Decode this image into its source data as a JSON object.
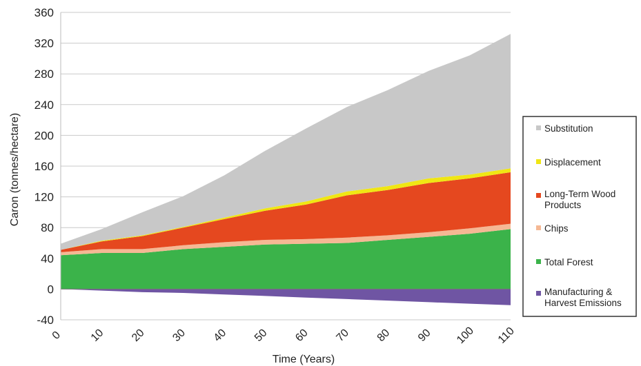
{
  "chart_data": {
    "type": "area",
    "stacked": true,
    "xlabel": "Time (Years)",
    "ylabel": "Caron (tonnes/hectare)",
    "ylim": [
      -40,
      360
    ],
    "xlim": [
      0,
      110
    ],
    "yticks": [
      "360",
      "320",
      "280",
      "240",
      "200",
      "160",
      "120",
      "80",
      "40",
      "0",
      "-40"
    ],
    "xticks": [
      "0",
      "10",
      "20",
      "30",
      "40",
      "50",
      "60",
      "70",
      "80",
      "90",
      "100",
      "110"
    ],
    "grid": "horizontal",
    "legend_position": "right",
    "x": [
      0,
      10,
      20,
      30,
      40,
      50,
      60,
      70,
      80,
      90,
      100,
      110
    ],
    "series": [
      {
        "name": "Manufacturing & Harvest Emissions",
        "color": "#6f55a3",
        "values": [
          0,
          -2,
          -4,
          -5,
          -7,
          -9,
          -11,
          -13,
          -15,
          -17,
          -19,
          -21
        ]
      },
      {
        "name": "Total Forest",
        "color": "#3bb34a",
        "values": [
          44,
          47,
          47,
          52,
          55,
          58,
          59,
          60,
          64,
          68,
          72,
          78
        ]
      },
      {
        "name": "Chips",
        "color": "#f5b894",
        "values": [
          4,
          5,
          5,
          5,
          6,
          6,
          6,
          7,
          6,
          6,
          7,
          7
        ]
      },
      {
        "name": "Long-Term Wood Products",
        "color": "#e5481f",
        "values": [
          3,
          10,
          17,
          23,
          30,
          38,
          45,
          55,
          59,
          64,
          65,
          67
        ]
      },
      {
        "name": "Displacement",
        "color": "#f0e614",
        "values": [
          0,
          1,
          1,
          1,
          2,
          3,
          4,
          5,
          5,
          6,
          5,
          5
        ]
      },
      {
        "name": "Substitution",
        "color": "#c8c8c8",
        "values": [
          8,
          15,
          30,
          40,
          55,
          75,
          95,
          110,
          125,
          140,
          155,
          175
        ]
      }
    ]
  },
  "legend": {
    "items": [
      {
        "label": "Substitution",
        "color": "#c8c8c8"
      },
      {
        "label": "Displacement",
        "color": "#f0e614"
      },
      {
        "label": "Long-Term Wood Products",
        "color": "#e5481f"
      },
      {
        "label": "Chips",
        "color": "#f5b894"
      },
      {
        "label": "Total Forest",
        "color": "#3bb34a"
      },
      {
        "label": "Manufacturing & Harvest Emissions",
        "color": "#6f55a3"
      }
    ]
  }
}
